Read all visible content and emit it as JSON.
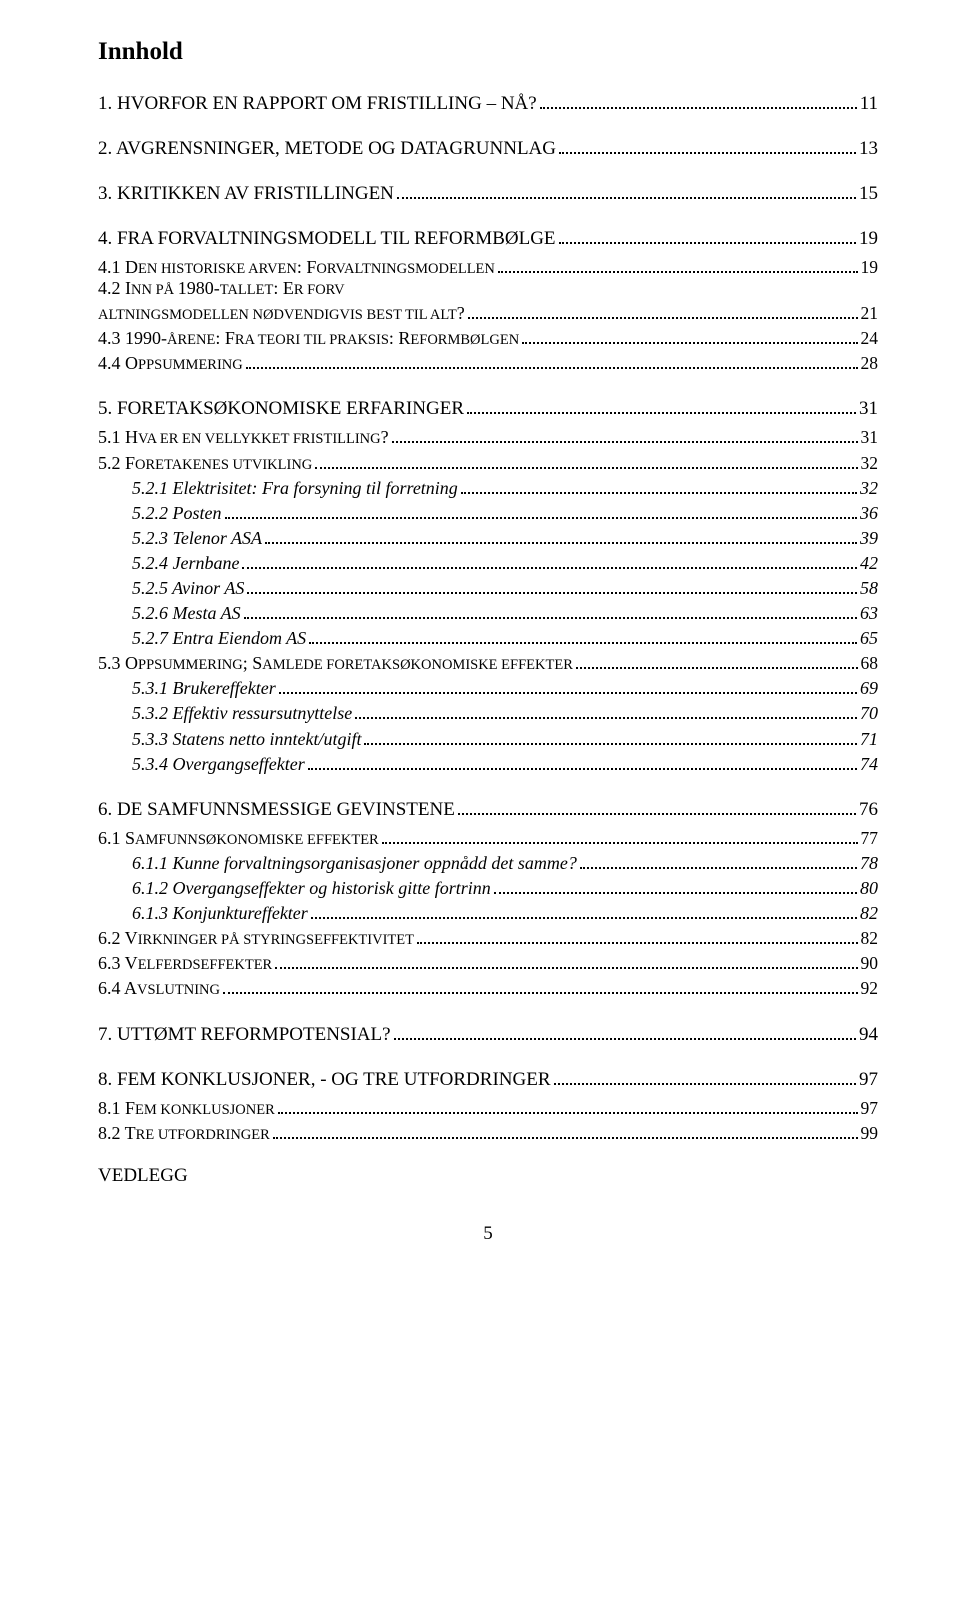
{
  "title": "Innhold",
  "toc": [
    {
      "level": 1,
      "text": "1. HVORFOR EN RAPPORT OM FRISTILLING – NÅ?",
      "page": "11"
    },
    {
      "level": 1,
      "text": "2. AVGRENSNINGER, METODE OG DATAGRUNNLAG",
      "page": "13"
    },
    {
      "level": 1,
      "text": "3. KRITIKKEN AV FRISTILLINGEN",
      "page": "15"
    },
    {
      "level": 1,
      "text": "4. FRA FORVALTNINGSMODELL TIL REFORMBØLGE",
      "page": "19"
    },
    {
      "level": 2,
      "sc": true,
      "prefix": "4.1 D",
      "rest": "EN HISTORISKE ARVEN",
      "tail": ": F",
      "rest2": "ORVALTNINGSMODELLEN",
      "page": "19"
    },
    {
      "level": 2,
      "sc": true,
      "prefix": "4.2 I",
      "rest": "NN PÅ ",
      "tail": "1980-",
      "rest2": "TALLET",
      "tail2": ": E",
      "rest3": "R FORVALTNINGSMODELLEN NØDVENDIGVIS BEST TIL ALT",
      "tail3": "?",
      "page": "21"
    },
    {
      "level": 2,
      "sc": true,
      "prefix": "4.3 1990-",
      "rest": "ÅRENE",
      "tail": ": F",
      "rest2": "RA TEORI TIL PRAKSIS",
      "tail2": ": R",
      "rest3": "EFORMBØLGEN",
      "page": "24"
    },
    {
      "level": 2,
      "sc": true,
      "prefix": "4.4 O",
      "rest": "PPSUMMERING",
      "page": "28"
    },
    {
      "level": 1,
      "text": "5. FORETAKSØKONOMISKE ERFARINGER",
      "page": "31"
    },
    {
      "level": 2,
      "sc": true,
      "prefix": "5.1 H",
      "rest": "VA ER EN VELLYKKET FRISTILLING",
      "tail": "?",
      "page": "31"
    },
    {
      "level": 2,
      "sc": true,
      "prefix": "5.2 F",
      "rest": "ORETAKENES UTVIKLING",
      "page": "32"
    },
    {
      "level": 3,
      "text": "5.2.1 Elektrisitet: Fra forsyning til forretning",
      "page": "32"
    },
    {
      "level": 3,
      "text": "5.2.2 Posten",
      "page": "36"
    },
    {
      "level": 3,
      "text": "5.2.3 Telenor ASA",
      "page": "39"
    },
    {
      "level": 3,
      "text": "5.2.4 Jernbane",
      "page": "42"
    },
    {
      "level": 3,
      "text": "5.2.5 Avinor AS",
      "page": "58"
    },
    {
      "level": 3,
      "text": "5.2.6 Mesta AS",
      "page": "63"
    },
    {
      "level": 3,
      "text": "5.2.7 Entra Eiendom AS",
      "page": "65"
    },
    {
      "level": 2,
      "sc": true,
      "prefix": "5.3 O",
      "rest": "PPSUMMERING",
      "tail": "; S",
      "rest2": "AMLEDE FORETAKSØKONOMISKE EFFEKTER",
      "page": "68"
    },
    {
      "level": 3,
      "text": "5.3.1 Brukereffekter",
      "page": "69"
    },
    {
      "level": 3,
      "text": "5.3.2 Effektiv ressursutnyttelse",
      "page": "70"
    },
    {
      "level": 3,
      "text": "5.3.3 Statens netto inntekt/utgift",
      "page": "71"
    },
    {
      "level": 3,
      "text": "5.3.4 Overgangseffekter",
      "page": "74"
    },
    {
      "level": 1,
      "text": "6. DE SAMFUNNSMESSIGE GEVINSTENE",
      "page": "76"
    },
    {
      "level": 2,
      "sc": true,
      "prefix": "6.1 S",
      "rest": "AMFUNNSØKONOMISKE EFFEKTER",
      "page": "77"
    },
    {
      "level": 3,
      "text": "6.1.1 Kunne forvaltningsorganisasjoner oppnådd det samme?",
      "page": "78"
    },
    {
      "level": 3,
      "text": "6.1.2 Overgangseffekter og historisk gitte fortrinn",
      "page": "80"
    },
    {
      "level": 3,
      "text": "6.1.3 Konjunktureffekter",
      "page": "82"
    },
    {
      "level": 2,
      "sc": true,
      "prefix": "6.2 V",
      "rest": "IRKNINGER PÅ STYRINGSEFFEKTIVITET",
      "page": "82"
    },
    {
      "level": 2,
      "sc": true,
      "prefix": "6.3 V",
      "rest": "ELFERDSEFFEKTER",
      "page": "90"
    },
    {
      "level": 2,
      "sc": true,
      "prefix": "6.4 A",
      "rest": "VSLUTNING",
      "page": "92"
    },
    {
      "level": 1,
      "text": "7. UTTØMT REFORMPOTENSIAL?",
      "page": "94"
    },
    {
      "level": 1,
      "text": "8. FEM KONKLUSJONER, - OG TRE UTFORDRINGER",
      "page": "97"
    },
    {
      "level": 2,
      "sc": true,
      "prefix": "8.1 F",
      "rest": "EM KONKLUSJONER",
      "page": "97"
    },
    {
      "level": 2,
      "sc": true,
      "prefix": "8.2 T",
      "rest": "RE UTFORDRINGER",
      "page": "99"
    }
  ],
  "appendix": "VEDLEGG",
  "pageNumber": "5",
  "colors": {
    "text": "#000000",
    "background": "#ffffff"
  }
}
